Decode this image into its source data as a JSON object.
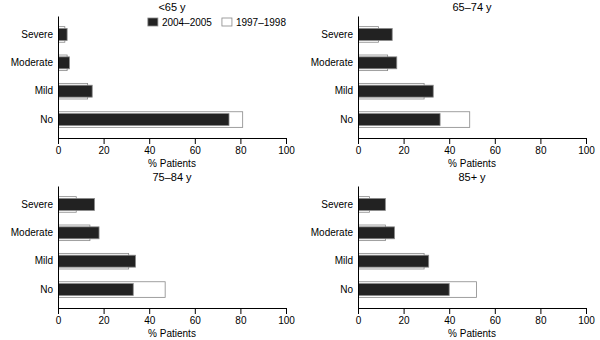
{
  "chart_data": [
    {
      "type": "bar",
      "orientation": "horizontal",
      "title": "<65 y",
      "categories": [
        "No",
        "Mild",
        "Moderate",
        "Severe"
      ],
      "series": [
        {
          "name": "2004–2005",
          "color": "#222222",
          "values": [
            75,
            15,
            5,
            4
          ]
        },
        {
          "name": "1997–1998",
          "color": "#ffffff",
          "values": [
            81,
            13,
            4,
            3
          ]
        }
      ],
      "xlabel": "% Patients",
      "xlim": [
        0,
        100
      ],
      "xticks": [
        0,
        20,
        40,
        60,
        80,
        100
      ],
      "grid": false,
      "legend": "upper right"
    },
    {
      "type": "bar",
      "orientation": "horizontal",
      "title": "65–74 y",
      "categories": [
        "No",
        "Mild",
        "Moderate",
        "Severe"
      ],
      "series": [
        {
          "color": "#222222",
          "values": [
            36,
            33,
            17,
            15
          ]
        },
        {
          "color": "#ffffff",
          "values": [
            49,
            29,
            13,
            9
          ]
        }
      ],
      "xlabel": "% Patients",
      "xlim": [
        0,
        100
      ],
      "xticks": [
        0,
        20,
        40,
        60,
        80,
        100
      ],
      "grid": false
    },
    {
      "type": "bar",
      "orientation": "horizontal",
      "title": "75–84 y",
      "categories": [
        "No",
        "Mild",
        "Moderate",
        "Severe"
      ],
      "series": [
        {
          "color": "#222222",
          "values": [
            33,
            34,
            18,
            16
          ]
        },
        {
          "color": "#ffffff",
          "values": [
            47,
            31,
            14,
            8
          ]
        }
      ],
      "xlabel": "% Patients",
      "xlim": [
        0,
        100
      ],
      "xticks": [
        0,
        20,
        40,
        60,
        80,
        100
      ],
      "grid": false
    },
    {
      "type": "bar",
      "orientation": "horizontal",
      "title": "85+ y",
      "categories": [
        "No",
        "Mild",
        "Moderate",
        "Severe"
      ],
      "series": [
        {
          "color": "#222222",
          "values": [
            40,
            31,
            16,
            12
          ]
        },
        {
          "color": "#ffffff",
          "values": [
            52,
            29,
            12,
            5
          ]
        }
      ],
      "xlabel": "% Patients",
      "xlim": [
        0,
        100
      ],
      "xticks": [
        0,
        20,
        40,
        60,
        80,
        100
      ],
      "grid": false
    }
  ]
}
